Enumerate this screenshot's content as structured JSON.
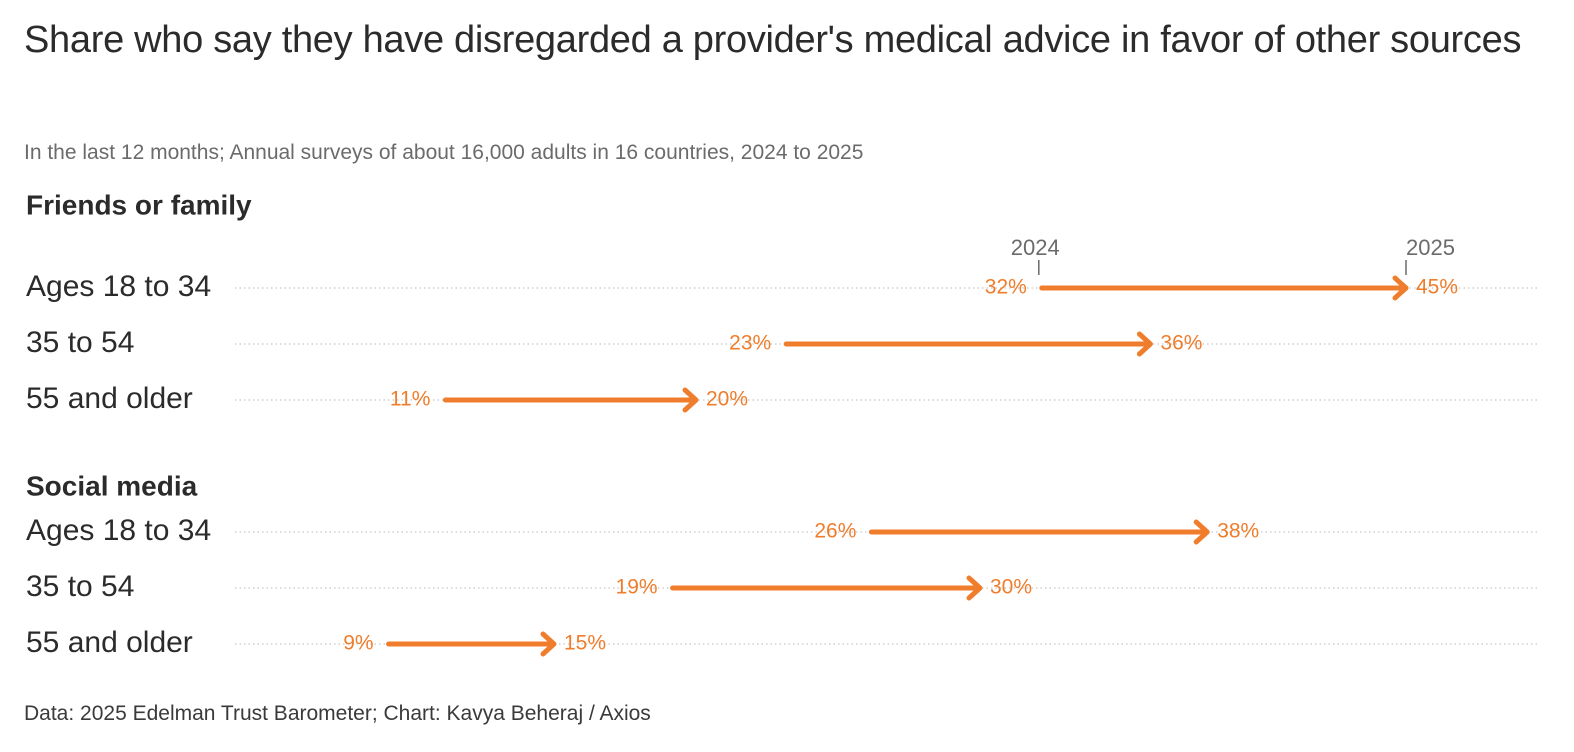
{
  "title": "Share who say they have disregarded a provider's medical advice in favor of other sources",
  "subtitle": "In the last 12 months; Annual surveys of about 16,000 adults in 16 countries, 2024 to 2025",
  "footer": "Data: 2025 Edelman Trust Barometer; Chart: Kavya Beheraj / Axios",
  "colors": {
    "accent": "#ef7d2c",
    "text": "#2b2b2b",
    "muted": "#6b6b6b",
    "grid": "#c8c8c8"
  },
  "chart_data": {
    "type": "arrow",
    "unit": "%",
    "start_label": "2024",
    "end_label": "2025",
    "grid": "dotted horizontal row guides",
    "groups": [
      {
        "name": "Friends or family",
        "rows": [
          {
            "label": "Ages 18 to 34",
            "start": 32,
            "end": 45
          },
          {
            "label": "35 to 54",
            "start": 23,
            "end": 36
          },
          {
            "label": "55 and older",
            "start": 11,
            "end": 20
          }
        ]
      },
      {
        "name": "Social media",
        "rows": [
          {
            "label": "Ages 18 to 34",
            "start": 26,
            "end": 38
          },
          {
            "label": "35 to 54",
            "start": 19,
            "end": 30
          },
          {
            "label": "55 and older",
            "start": 9,
            "end": 15
          }
        ]
      }
    ]
  }
}
